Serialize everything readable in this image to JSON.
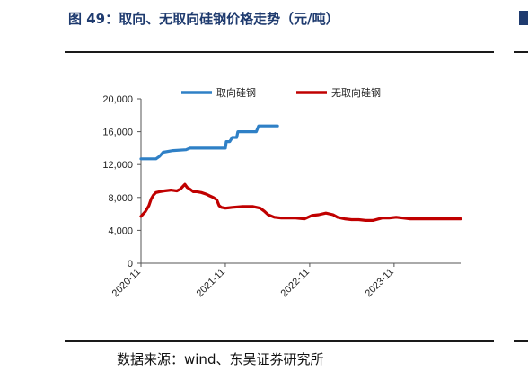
{
  "header": {
    "title": "图 49：取向、无取向硅钢价格走势（元/吨）"
  },
  "footer": {
    "source": "数据来源：wind、东吴证券研究所"
  },
  "colors": {
    "title": "#1f3b6f",
    "series_oriented": "#2f80c6",
    "series_non_oriented": "#c00000"
  },
  "chart_data": {
    "type": "line",
    "title": "",
    "xlabel": "",
    "ylabel": "",
    "x_axis_type": "date",
    "xlim": [
      "2020-11-01",
      "2024-08-15"
    ],
    "x_tick_labels": [
      "2020-11",
      "2021-11",
      "2022-11",
      "2023-11"
    ],
    "x_tick_dates": [
      "2020-11-01",
      "2021-11-01",
      "2022-11-01",
      "2023-11-01"
    ],
    "ylim": [
      0,
      20000
    ],
    "y_ticks": [
      0,
      4000,
      8000,
      12000,
      16000,
      20000
    ],
    "y_tick_labels": [
      "0",
      "4,000",
      "8,000",
      "12,000",
      "16,000",
      "20,000"
    ],
    "grid": false,
    "legend_position": "top",
    "series": [
      {
        "name": "取向硅钢",
        "color": "#2f80c6",
        "points": [
          [
            "2020-11-01",
            12700
          ],
          [
            "2021-01-05",
            12700
          ],
          [
            "2021-01-20",
            13000
          ],
          [
            "2021-02-05",
            13500
          ],
          [
            "2021-03-20",
            13700
          ],
          [
            "2021-05-15",
            13800
          ],
          [
            "2021-06-01",
            14000
          ],
          [
            "2021-08-01",
            14000
          ],
          [
            "2021-09-01",
            14000
          ],
          [
            "2021-11-01",
            14000
          ],
          [
            "2021-11-05",
            14800
          ],
          [
            "2021-11-20",
            14800
          ],
          [
            "2021-12-01",
            15300
          ],
          [
            "2021-12-20",
            15300
          ],
          [
            "2021-12-25",
            16000
          ],
          [
            "2022-03-15",
            16000
          ],
          [
            "2022-03-25",
            16700
          ],
          [
            "2022-06-15",
            16700
          ]
        ]
      },
      {
        "name": "无取向硅钢",
        "color": "#c00000",
        "points": [
          [
            "2020-11-01",
            5700
          ],
          [
            "2020-11-20",
            6300
          ],
          [
            "2020-12-05",
            7000
          ],
          [
            "2020-12-15",
            7800
          ],
          [
            "2020-12-25",
            8300
          ],
          [
            "2021-01-05",
            8600
          ],
          [
            "2021-01-20",
            8700
          ],
          [
            "2021-02-10",
            8800
          ],
          [
            "2021-03-10",
            8900
          ],
          [
            "2021-04-05",
            8800
          ],
          [
            "2021-04-20",
            9000
          ],
          [
            "2021-05-10",
            9600
          ],
          [
            "2021-05-20",
            9200
          ],
          [
            "2021-06-01",
            9000
          ],
          [
            "2021-06-15",
            8700
          ],
          [
            "2021-07-01",
            8700
          ],
          [
            "2021-07-20",
            8600
          ],
          [
            "2021-08-10",
            8400
          ],
          [
            "2021-08-25",
            8200
          ],
          [
            "2021-09-10",
            8000
          ],
          [
            "2021-09-25",
            7700
          ],
          [
            "2021-10-05",
            7000
          ],
          [
            "2021-10-15",
            6800
          ],
          [
            "2021-11-01",
            6700
          ],
          [
            "2021-12-01",
            6800
          ],
          [
            "2022-01-15",
            6900
          ],
          [
            "2022-03-01",
            6900
          ],
          [
            "2022-04-01",
            6700
          ],
          [
            "2022-04-20",
            6300
          ],
          [
            "2022-05-05",
            5900
          ],
          [
            "2022-06-01",
            5600
          ],
          [
            "2022-07-01",
            5500
          ],
          [
            "2022-08-01",
            5500
          ],
          [
            "2022-09-01",
            5500
          ],
          [
            "2022-10-10",
            5400
          ],
          [
            "2022-11-10",
            5800
          ],
          [
            "2022-12-10",
            5900
          ],
          [
            "2023-01-10",
            6100
          ],
          [
            "2023-02-10",
            5900
          ],
          [
            "2023-03-01",
            5600
          ],
          [
            "2023-04-01",
            5400
          ],
          [
            "2023-05-01",
            5300
          ],
          [
            "2023-06-01",
            5300
          ],
          [
            "2023-07-01",
            5200
          ],
          [
            "2023-08-01",
            5200
          ],
          [
            "2023-09-10",
            5500
          ],
          [
            "2023-10-10",
            5500
          ],
          [
            "2023-11-10",
            5600
          ],
          [
            "2023-12-10",
            5500
          ],
          [
            "2024-01-10",
            5400
          ],
          [
            "2024-02-10",
            5400
          ],
          [
            "2024-04-01",
            5400
          ],
          [
            "2024-06-01",
            5400
          ],
          [
            "2024-08-15",
            5400
          ]
        ]
      }
    ]
  }
}
